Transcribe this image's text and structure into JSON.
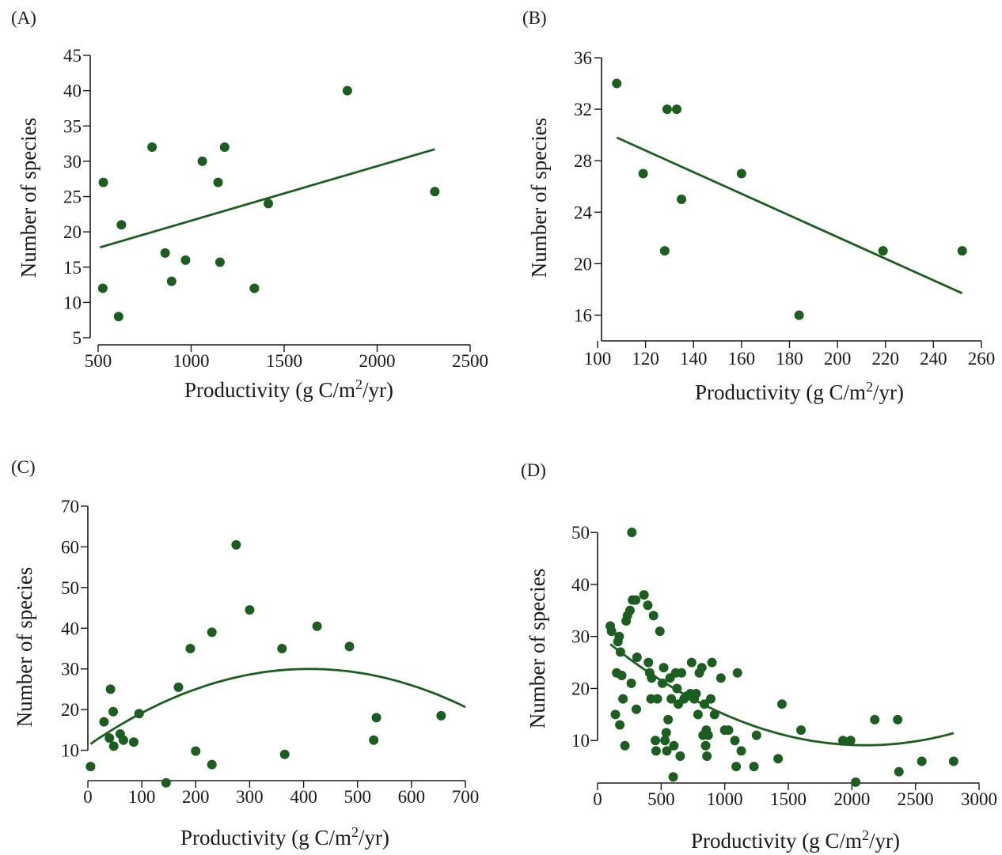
{
  "colors": {
    "marker": "#1b5e20",
    "fit_line": "#1b5e20",
    "axis": "#1a1a1a",
    "background": "#ffffff"
  },
  "chart_data": [
    {
      "panel_label": "(A)",
      "type": "scatter",
      "xlabel": "Productivity (g C/m²/yr)",
      "xlabel_parts": [
        "Productivity (g C/m",
        "2",
        "/yr)"
      ],
      "ylabel": "Number of species",
      "xlim": [
        500,
        2500
      ],
      "ylim": [
        5,
        45
      ],
      "xticks": [
        500,
        1000,
        1500,
        2000,
        2500
      ],
      "yticks": [
        5,
        10,
        15,
        20,
        25,
        30,
        35,
        40,
        45
      ],
      "grid": false,
      "points": [
        {
          "x": 525,
          "y": 12
        },
        {
          "x": 528,
          "y": 27
        },
        {
          "x": 610,
          "y": 8
        },
        {
          "x": 625,
          "y": 21
        },
        {
          "x": 790,
          "y": 32
        },
        {
          "x": 860,
          "y": 17
        },
        {
          "x": 895,
          "y": 13
        },
        {
          "x": 970,
          "y": 16
        },
        {
          "x": 1060,
          "y": 30
        },
        {
          "x": 1145,
          "y": 27
        },
        {
          "x": 1155,
          "y": 15.7
        },
        {
          "x": 1180,
          "y": 32
        },
        {
          "x": 1340,
          "y": 12
        },
        {
          "x": 1415,
          "y": 24
        },
        {
          "x": 1840,
          "y": 40
        },
        {
          "x": 2310,
          "y": 25.7
        }
      ],
      "fit": {
        "kind": "linear",
        "from": [
          510,
          17.8
        ],
        "to": [
          2310,
          31.7
        ]
      }
    },
    {
      "panel_label": "(B)",
      "type": "scatter",
      "xlabel": "Productivity (g C/m²/yr)",
      "xlabel_parts": [
        "Productivity (g C/m",
        "2",
        "/yr)"
      ],
      "ylabel": "Number of species",
      "xlim": [
        100,
        260
      ],
      "ylim": [
        14,
        36
      ],
      "xticks": [
        100,
        120,
        140,
        160,
        180,
        200,
        220,
        240,
        260
      ],
      "yticks": [
        16,
        20,
        24,
        28,
        32,
        36
      ],
      "grid": false,
      "points": [
        {
          "x": 108,
          "y": 34
        },
        {
          "x": 119,
          "y": 27
        },
        {
          "x": 128,
          "y": 21
        },
        {
          "x": 129,
          "y": 32
        },
        {
          "x": 133,
          "y": 32
        },
        {
          "x": 135,
          "y": 25
        },
        {
          "x": 160,
          "y": 27
        },
        {
          "x": 184,
          "y": 16
        },
        {
          "x": 219,
          "y": 21
        },
        {
          "x": 252,
          "y": 21
        }
      ],
      "fit": {
        "kind": "linear",
        "from": [
          108,
          29.8
        ],
        "to": [
          252,
          17.7
        ]
      }
    },
    {
      "panel_label": "(C)",
      "type": "scatter",
      "xlabel": "Productivity (g C/m²/yr)",
      "xlabel_parts": [
        "Productivity (g C/m",
        "2",
        "/yr)"
      ],
      "ylabel": "Number of species",
      "xlim": [
        0,
        700
      ],
      "ylim": [
        0,
        70
      ],
      "xticks": [
        0,
        100,
        200,
        300,
        400,
        500,
        600,
        700
      ],
      "yticks": [
        10,
        20,
        30,
        40,
        50,
        60,
        70
      ],
      "grid": false,
      "points": [
        {
          "x": 5,
          "y": 6
        },
        {
          "x": 30,
          "y": 17
        },
        {
          "x": 40,
          "y": 13
        },
        {
          "x": 42,
          "y": 25
        },
        {
          "x": 47,
          "y": 19.5
        },
        {
          "x": 48,
          "y": 11
        },
        {
          "x": 60,
          "y": 14
        },
        {
          "x": 66,
          "y": 12.5
        },
        {
          "x": 85,
          "y": 12
        },
        {
          "x": 95,
          "y": 19
        },
        {
          "x": 145,
          "y": 2
        },
        {
          "x": 168,
          "y": 25.5
        },
        {
          "x": 190,
          "y": 35
        },
        {
          "x": 200,
          "y": 9.8
        },
        {
          "x": 230,
          "y": 39
        },
        {
          "x": 230,
          "y": 6.5
        },
        {
          "x": 275,
          "y": 60.5
        },
        {
          "x": 300,
          "y": 44.5
        },
        {
          "x": 360,
          "y": 35
        },
        {
          "x": 365,
          "y": 9
        },
        {
          "x": 425,
          "y": 40.5
        },
        {
          "x": 485,
          "y": 35.5
        },
        {
          "x": 530,
          "y": 12.5
        },
        {
          "x": 535,
          "y": 18
        },
        {
          "x": 655,
          "y": 18.5
        }
      ],
      "fit": {
        "kind": "quadratic",
        "a": -0.000112,
        "b": 0.092,
        "c": 11.1,
        "xrange": [
          5,
          700
        ]
      }
    },
    {
      "panel_label": "(D)",
      "type": "scatter",
      "xlabel": "Productivity (g C/m²/yr)",
      "xlabel_parts": [
        "Productivity (g C/m",
        "2",
        "/yr)"
      ],
      "ylabel": "Number of species",
      "xlim": [
        0,
        3000
      ],
      "ylim": [
        0,
        52
      ],
      "xticks": [
        0,
        500,
        1000,
        1500,
        2000,
        2500,
        3000
      ],
      "yticks": [
        10,
        20,
        30,
        40,
        50
      ],
      "grid": false,
      "points": [
        {
          "x": 100,
          "y": 32
        },
        {
          "x": 110,
          "y": 31
        },
        {
          "x": 140,
          "y": 15
        },
        {
          "x": 150,
          "y": 23
        },
        {
          "x": 160,
          "y": 29
        },
        {
          "x": 170,
          "y": 30
        },
        {
          "x": 175,
          "y": 13
        },
        {
          "x": 180,
          "y": 27
        },
        {
          "x": 190,
          "y": 22.5
        },
        {
          "x": 200,
          "y": 18
        },
        {
          "x": 215,
          "y": 9
        },
        {
          "x": 225,
          "y": 33
        },
        {
          "x": 235,
          "y": 34
        },
        {
          "x": 255,
          "y": 35
        },
        {
          "x": 265,
          "y": 21
        },
        {
          "x": 270,
          "y": 50
        },
        {
          "x": 275,
          "y": 37
        },
        {
          "x": 300,
          "y": 37
        },
        {
          "x": 305,
          "y": 16
        },
        {
          "x": 310,
          "y": 26
        },
        {
          "x": 365,
          "y": 38
        },
        {
          "x": 395,
          "y": 36
        },
        {
          "x": 400,
          "y": 25
        },
        {
          "x": 410,
          "y": 23
        },
        {
          "x": 420,
          "y": 18
        },
        {
          "x": 425,
          "y": 22
        },
        {
          "x": 440,
          "y": 34
        },
        {
          "x": 455,
          "y": 10
        },
        {
          "x": 460,
          "y": 8
        },
        {
          "x": 470,
          "y": 18
        },
        {
          "x": 490,
          "y": 31
        },
        {
          "x": 510,
          "y": 21
        },
        {
          "x": 520,
          "y": 24
        },
        {
          "x": 530,
          "y": 10
        },
        {
          "x": 540,
          "y": 11.5
        },
        {
          "x": 545,
          "y": 8
        },
        {
          "x": 555,
          "y": 14
        },
        {
          "x": 570,
          "y": 22
        },
        {
          "x": 580,
          "y": 18
        },
        {
          "x": 595,
          "y": 3
        },
        {
          "x": 600,
          "y": 9
        },
        {
          "x": 615,
          "y": 23
        },
        {
          "x": 625,
          "y": 20
        },
        {
          "x": 635,
          "y": 17
        },
        {
          "x": 650,
          "y": 7
        },
        {
          "x": 660,
          "y": 23
        },
        {
          "x": 680,
          "y": 18
        },
        {
          "x": 700,
          "y": 18.5
        },
        {
          "x": 730,
          "y": 19
        },
        {
          "x": 740,
          "y": 25
        },
        {
          "x": 760,
          "y": 18
        },
        {
          "x": 775,
          "y": 19
        },
        {
          "x": 790,
          "y": 15
        },
        {
          "x": 800,
          "y": 23
        },
        {
          "x": 820,
          "y": 24
        },
        {
          "x": 830,
          "y": 11
        },
        {
          "x": 840,
          "y": 17
        },
        {
          "x": 850,
          "y": 9
        },
        {
          "x": 855,
          "y": 12
        },
        {
          "x": 860,
          "y": 7
        },
        {
          "x": 870,
          "y": 11
        },
        {
          "x": 890,
          "y": 18
        },
        {
          "x": 900,
          "y": 25
        },
        {
          "x": 920,
          "y": 15
        },
        {
          "x": 970,
          "y": 22
        },
        {
          "x": 1000,
          "y": 12
        },
        {
          "x": 1030,
          "y": 12
        },
        {
          "x": 1080,
          "y": 10
        },
        {
          "x": 1090,
          "y": 5
        },
        {
          "x": 1100,
          "y": 23
        },
        {
          "x": 1130,
          "y": 8
        },
        {
          "x": 1230,
          "y": 5
        },
        {
          "x": 1250,
          "y": 11
        },
        {
          "x": 1420,
          "y": 6.5
        },
        {
          "x": 1450,
          "y": 17
        },
        {
          "x": 1600,
          "y": 12
        },
        {
          "x": 1930,
          "y": 10
        },
        {
          "x": 1990,
          "y": 10
        },
        {
          "x": 2030,
          "y": 2
        },
        {
          "x": 2180,
          "y": 14
        },
        {
          "x": 2360,
          "y": 14
        },
        {
          "x": 2370,
          "y": 4
        },
        {
          "x": 2550,
          "y": 6
        },
        {
          "x": 2800,
          "y": 6
        }
      ],
      "fit": {
        "kind": "quadratic",
        "a": 4.83e-06,
        "b": -0.02034,
        "c": 30.5,
        "xrange": [
          100,
          2800
        ]
      }
    }
  ]
}
